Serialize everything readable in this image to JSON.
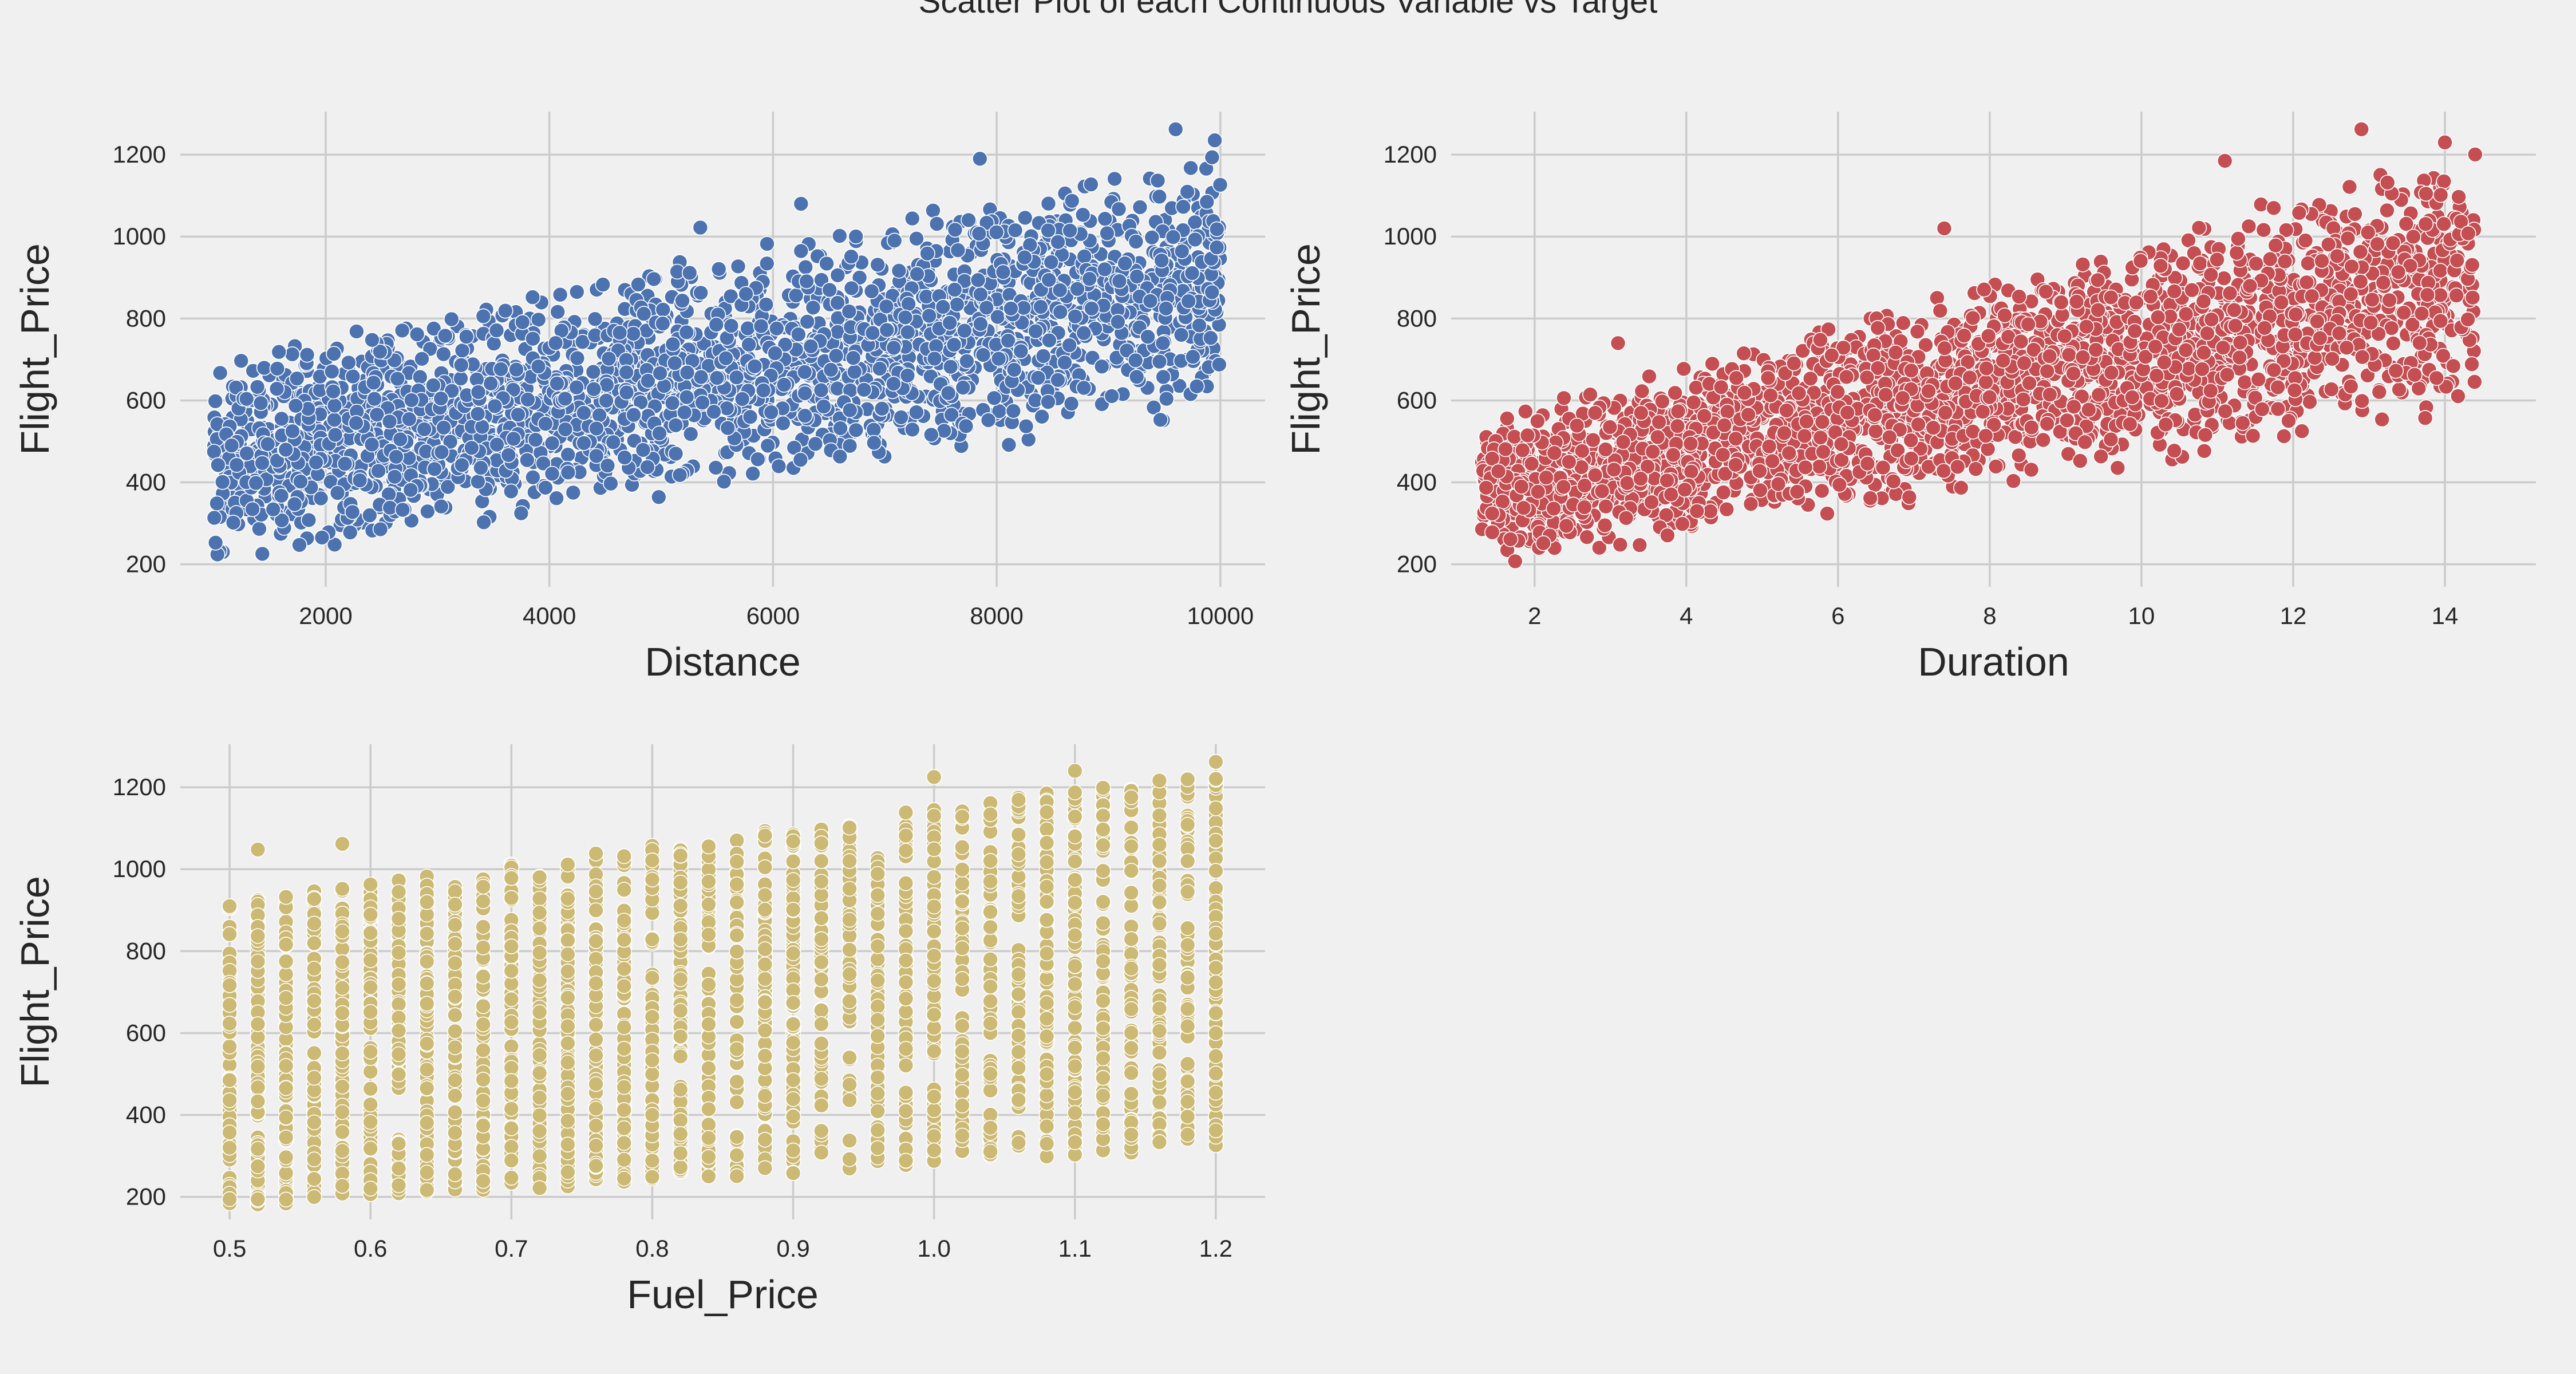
{
  "figure": {
    "title": "Scatter Plot of each Continuous Variable vs Target",
    "background": "#f0f0f0"
  },
  "chart_data": [
    {
      "type": "scatter",
      "x_variable": "Distance",
      "xlabel": "Distance",
      "ylabel": "Flight_Price",
      "color": "#4c72b0",
      "xlim": [
        700,
        10400
      ],
      "ylim": [
        145,
        1305
      ],
      "xticks": [
        2000,
        4000,
        6000,
        8000,
        10000
      ],
      "yticks": [
        200,
        400,
        600,
        800,
        1000,
        1200
      ],
      "grid": true,
      "trend": {
        "x_range": [
          1000,
          10000
        ],
        "price_low": [
          180,
          560
        ],
        "price_high": [
          700,
          1230
        ]
      },
      "outliers": [
        {
          "x": 9600,
          "y": 1262
        },
        {
          "x": 7850,
          "y": 1190
        },
        {
          "x": 6250,
          "y": 1080
        },
        {
          "x": 5350,
          "y": 1022
        },
        {
          "x": 3850,
          "y": 852
        },
        {
          "x": 9950,
          "y": 1235
        }
      ]
    },
    {
      "type": "scatter",
      "x_variable": "Duration",
      "xlabel": "Duration",
      "ylabel": "Flight_Price",
      "color": "#c44e52",
      "xlim": [
        0.9,
        15.2
      ],
      "ylim": [
        145,
        1305
      ],
      "xticks": [
        2,
        4,
        6,
        8,
        10,
        12,
        14
      ],
      "yticks": [
        200,
        400,
        600,
        800,
        1000,
        1200
      ],
      "grid": true,
      "trend": {
        "x_range": [
          1.3,
          14.4
        ],
        "price_low": [
          180,
          560
        ],
        "price_high": [
          560,
          1230
        ]
      },
      "outliers": [
        {
          "x": 12.9,
          "y": 1262
        },
        {
          "x": 14.0,
          "y": 1230
        },
        {
          "x": 11.1,
          "y": 1185
        },
        {
          "x": 7.4,
          "y": 1020
        },
        {
          "x": 3.1,
          "y": 740
        }
      ]
    },
    {
      "type": "scatter",
      "x_variable": "Fuel_Price",
      "xlabel": "Fuel_Price",
      "ylabel": "Flight_Price",
      "color": "#ccb974",
      "xlim": [
        0.465,
        1.235
      ],
      "ylim": [
        145,
        1305
      ],
      "xticks": [
        0.5,
        0.6,
        0.7,
        0.8,
        0.9,
        1.0,
        1.1,
        1.2
      ],
      "yticks": [
        200,
        400,
        600,
        800,
        1000,
        1200
      ],
      "grid": true,
      "trend": {
        "x_range": [
          0.5,
          1.2
        ],
        "price_low": [
          175,
          320
        ],
        "price_high": [
          920,
          1240
        ]
      },
      "outliers": [
        {
          "x": 1.2,
          "y": 1262
        },
        {
          "x": 1.1,
          "y": 1240
        },
        {
          "x": 1.0,
          "y": 1225
        },
        {
          "x": 0.58,
          "y": 1062
        },
        {
          "x": 0.52,
          "y": 1048
        }
      ]
    }
  ]
}
